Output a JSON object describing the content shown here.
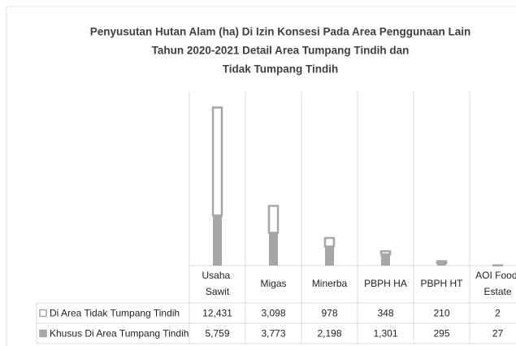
{
  "chart_data": {
    "type": "stacked_bar",
    "title": [
      "Penyusutan Hutan Alam (ha) Di Izin Konsesi Pada Area Penggunaan Lain",
      "Tahun 2020-2021 Detail Area Tumpang Tindih dan",
      "Tidak Tumpang Tindih"
    ],
    "categories": [
      "Usaha Sawit",
      "Migas",
      "Minerba",
      "PBPH HA",
      "PBPH HT",
      "AOI Food Estate"
    ],
    "series": [
      {
        "name": "Di Area Tidak Tumpang Tindih",
        "color": "#ffffff",
        "edge": "#a6a6a6",
        "values": [
          12431,
          3098,
          978,
          348,
          210,
          2
        ],
        "value_labels": [
          "12,431",
          "3,098",
          "978",
          "348",
          "210",
          "2"
        ]
      },
      {
        "name": "Khusus Di Area Tumpang Tindih",
        "color": "#a6a6a6",
        "edge": "#a6a6a6",
        "values": [
          5759,
          3773,
          2198,
          1301,
          295,
          27
        ],
        "value_labels": [
          "5,759",
          "3,773",
          "2,198",
          "1,301",
          "295",
          "27"
        ]
      }
    ],
    "ylim": [
      0,
      20000
    ],
    "grid": true
  }
}
